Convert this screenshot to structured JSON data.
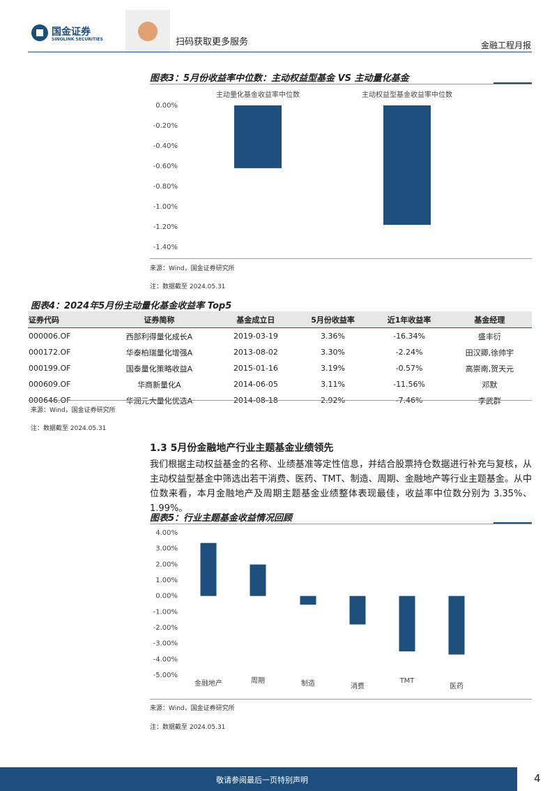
{
  "header": {
    "logo_cn": "国金证券",
    "logo_en": "SINOLINK SECURITIES",
    "qr_text": "扫码获取更多服务",
    "report_type": "金融工程月报"
  },
  "figure3": {
    "title": "图表3：5月份收益率中位数：主动权益型基金 VS 主动量化基金",
    "source": "来源：Wind，国金证券研究所",
    "note": "注：数据截至 2024.05.31"
  },
  "figure4": {
    "title": "图表4：2024年5月份主动量化基金收益率 Top5",
    "source": "来源：Wind，国金证券研究所",
    "note": "注：数据截至 2024.05.31"
  },
  "table": {
    "header": [
      "证券代码",
      "证券简称",
      "基金成立日",
      "5月份收益率",
      "近1年收益率",
      "基金经理"
    ],
    "rows": [
      [
        "000006.OF",
        "西部利得量化成长A",
        "2019-03-19",
        "3.36%",
        "-16.34%",
        "盛丰衍"
      ],
      [
        "000172.OF",
        "华泰柏瑞量化增强A",
        "2013-08-02",
        "3.30%",
        "-2.24%",
        "田汉卿,徐帅宇"
      ],
      [
        "000199.OF",
        "国泰量化策略收益A",
        "2015-01-16",
        "3.19%",
        "-0.57%",
        "高崇南,贺天元"
      ],
      [
        "000609.OF",
        "华商新量化A",
        "2014-06-05",
        "3.11%",
        "-11.56%",
        "邓默"
      ],
      [
        "000646.OF",
        "华润元大量化优选A",
        "2014-08-18",
        "2.92%",
        "-7.46%",
        "李武群"
      ]
    ]
  },
  "section": {
    "heading": "1.3 5月份金融地产行业主题基金业绩领先",
    "paragraph": "我们根据主动权益基金的名称、业绩基准等定性信息，并结合股票持仓数据进行补充与复核，从主动权益型基金中筛选出若干消费、医药、TMT、制造、周期、金融地产等行业主题基金。从中位数来看，本月金融地产及周期主题基金业绩整体表现最佳，收益率中位数分别为 3.35%、1.99%。"
  },
  "figure5": {
    "title": "图表5：行业主题基金收益情况回顾",
    "source": "来源：Wind，国金证券研究所",
    "note": "注：数据截至 2024.05.31"
  },
  "footer": {
    "disclaimer": "敬请参阅最后一页特别声明",
    "page": "4"
  },
  "chart_data": [
    {
      "type": "bar",
      "categories": [
        "主动量化基金收益率中位数",
        "主动权益型基金收益率中位数"
      ],
      "values": [
        -0.62,
        -1.18
      ],
      "color": "#1d4f7c",
      "ylim": [
        -1.4,
        0
      ],
      "yticks": [
        {
          "value": 0,
          "label": "0.00%"
        },
        {
          "value": -0.2,
          "label": "-0.20%"
        },
        {
          "value": -0.4,
          "label": "-0.40%"
        },
        {
          "value": -0.6,
          "label": "-0.60%"
        },
        {
          "value": -0.8,
          "label": "-0.80%"
        },
        {
          "value": -1.0,
          "label": "-1.00%"
        },
        {
          "value": -1.2,
          "label": "-1.20%"
        },
        {
          "value": -1.4,
          "label": "-1.40%"
        }
      ]
    },
    {
      "type": "bar",
      "categories": [
        "金融地产",
        "周期",
        "制造",
        "消费",
        "TMT",
        "医药"
      ],
      "values": [
        3.35,
        1.99,
        -0.55,
        -1.8,
        -3.5,
        -3.7
      ],
      "color": "#1d4f7c",
      "ylim": [
        -5,
        4
      ],
      "yticks": [
        {
          "value": 4,
          "label": "4.00%"
        },
        {
          "value": 3,
          "label": "3.00%"
        },
        {
          "value": 2,
          "label": "2.00%"
        },
        {
          "value": 1,
          "label": "1.00%"
        },
        {
          "value": 0,
          "label": "0.00%"
        },
        {
          "value": -1,
          "label": "-1.00%"
        },
        {
          "value": -2,
          "label": "-2.00%"
        },
        {
          "value": -3,
          "label": "-3.00%"
        },
        {
          "value": -4,
          "label": "-4.00%"
        },
        {
          "value": -5,
          "label": "-5.00%"
        }
      ]
    }
  ]
}
